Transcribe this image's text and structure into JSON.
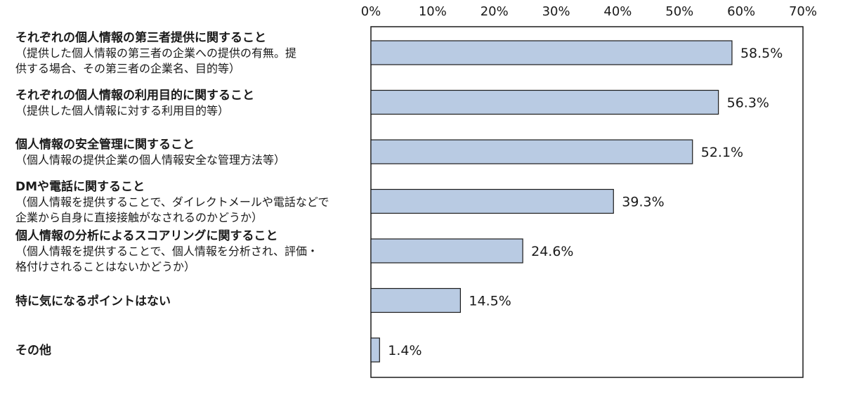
{
  "chart_data": {
    "type": "bar",
    "orientation": "horizontal",
    "title": "",
    "xlabel": "",
    "ylabel": "",
    "xlim": [
      0,
      70
    ],
    "x_ticks": [
      "0%",
      "10%",
      "20%",
      "30%",
      "40%",
      "50%",
      "60%",
      "70%"
    ],
    "grid": false,
    "bar_color": "#b9cbe3",
    "bar_edge_color": "#1a1a1a",
    "categories": [
      {
        "title": "それぞれの個人情報の第三者提供に関すること",
        "desc": [
          "（提供した個人情報の第三者の企業への提供の有無。提",
          "供する場合、その第三者の企業名、目的等）"
        ]
      },
      {
        "title": "それぞれの個人情報の利用目的に関すること",
        "desc": [
          "（提供した個人情報に対する利用目的等）"
        ]
      },
      {
        "title": "個人情報の安全管理に関すること",
        "desc": [
          "（個人情報の提供企業の個人情報安全な管理方法等）"
        ]
      },
      {
        "title": "DMや電話に関すること",
        "desc": [
          "（個人情報を提供することで、ダイレクトメールや電話などで",
          "企業から自身に直接接触がなされるのかどうか）"
        ]
      },
      {
        "title": "個人情報の分析によるスコアリングに関すること",
        "desc": [
          "（個人情報を提供することで、個人情報を分析され、評価・",
          "格付けされることはないかどうか）"
        ]
      },
      {
        "title": "特に気になるポイントはない",
        "desc": []
      },
      {
        "title": "その他",
        "desc": []
      }
    ],
    "values": [
      58.5,
      56.3,
      52.1,
      39.3,
      24.6,
      14.5,
      1.4
    ],
    "value_labels": [
      "58.5%",
      "56.3%",
      "52.1%",
      "39.3%",
      "24.6%",
      "14.5%",
      "1.4%"
    ]
  }
}
